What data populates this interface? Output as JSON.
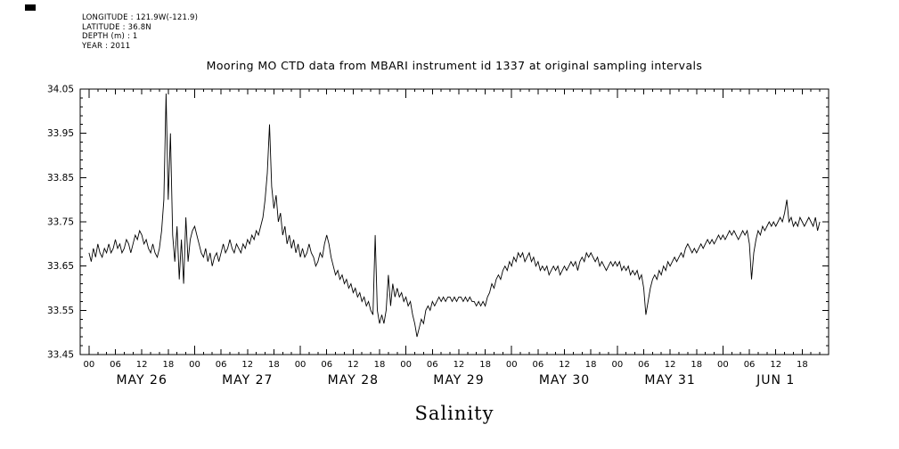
{
  "meta": {
    "longitude": "LONGITUDE : 121.9W(-121.9)",
    "latitude": "LATITUDE : 36.8N",
    "depth": "DEPTH (m) : 1",
    "year": "YEAR : 2011"
  },
  "title": "Mooring MO CTD data from MBARI instrument id 1337 at original sampling intervals",
  "chart_data": {
    "type": "line",
    "title": "Mooring MO CTD data from MBARI instrument id 1337 at original sampling intervals",
    "variable_label": "Salinity",
    "line_color": "#000000",
    "grid": false,
    "legend": "none",
    "ylim": [
      33.45,
      34.05
    ],
    "yticks": [
      33.45,
      33.55,
      33.65,
      33.75,
      33.85,
      33.95,
      34.05
    ],
    "xlim_hours": [
      -2,
      168
    ],
    "hour_step": 0.5,
    "days": [
      "MAY 26",
      "MAY 27",
      "MAY 28",
      "MAY 29",
      "MAY 30",
      "MAY 31",
      "JUN 1"
    ],
    "hour_tick_labels": [
      "00",
      "06",
      "12",
      "18"
    ],
    "series": [
      {
        "name": "Salinity",
        "y": [
          33.68,
          33.66,
          33.69,
          33.67,
          33.7,
          33.68,
          33.67,
          33.69,
          33.68,
          33.7,
          33.68,
          33.69,
          33.71,
          33.69,
          33.7,
          33.68,
          33.69,
          33.71,
          33.7,
          33.68,
          33.7,
          33.72,
          33.71,
          33.73,
          33.72,
          33.7,
          33.71,
          33.69,
          33.68,
          33.7,
          33.68,
          33.67,
          33.69,
          33.73,
          33.8,
          34.04,
          33.8,
          33.95,
          33.72,
          33.66,
          33.74,
          33.62,
          33.71,
          33.61,
          33.76,
          33.66,
          33.71,
          33.73,
          33.74,
          33.72,
          33.7,
          33.68,
          33.67,
          33.69,
          33.66,
          33.68,
          33.65,
          33.67,
          33.68,
          33.66,
          33.68,
          33.7,
          33.68,
          33.69,
          33.71,
          33.69,
          33.68,
          33.7,
          33.69,
          33.68,
          33.7,
          33.69,
          33.71,
          33.7,
          33.72,
          33.71,
          33.73,
          33.72,
          33.74,
          33.76,
          33.8,
          33.86,
          33.97,
          33.83,
          33.78,
          33.81,
          33.75,
          33.77,
          33.72,
          33.74,
          33.7,
          33.72,
          33.69,
          33.71,
          33.68,
          33.7,
          33.67,
          33.69,
          33.67,
          33.68,
          33.7,
          33.68,
          33.67,
          33.65,
          33.66,
          33.68,
          33.67,
          33.7,
          33.72,
          33.7,
          33.67,
          33.65,
          33.63,
          33.64,
          33.62,
          33.63,
          33.61,
          33.62,
          33.6,
          33.61,
          33.59,
          33.6,
          33.58,
          33.59,
          33.57,
          33.58,
          33.56,
          33.57,
          33.55,
          33.54,
          33.72,
          33.55,
          33.52,
          33.54,
          33.52,
          33.55,
          33.63,
          33.56,
          33.61,
          33.58,
          33.6,
          33.58,
          33.59,
          33.57,
          33.58,
          33.56,
          33.57,
          33.54,
          33.52,
          33.49,
          33.51,
          33.53,
          33.52,
          33.55,
          33.56,
          33.55,
          33.57,
          33.56,
          33.57,
          33.58,
          33.57,
          33.58,
          33.57,
          33.58,
          33.58,
          33.57,
          33.58,
          33.57,
          33.58,
          33.58,
          33.57,
          33.58,
          33.57,
          33.58,
          33.57,
          33.57,
          33.56,
          33.57,
          33.56,
          33.57,
          33.56,
          33.58,
          33.59,
          33.61,
          33.6,
          33.62,
          33.63,
          33.62,
          33.64,
          33.65,
          33.64,
          33.66,
          33.65,
          33.67,
          33.66,
          33.68,
          33.67,
          33.68,
          33.66,
          33.67,
          33.68,
          33.66,
          33.67,
          33.65,
          33.66,
          33.64,
          33.65,
          33.64,
          33.65,
          33.63,
          33.64,
          33.65,
          33.64,
          33.65,
          33.63,
          33.64,
          33.65,
          33.64,
          33.65,
          33.66,
          33.65,
          33.66,
          33.64,
          33.66,
          33.67,
          33.66,
          33.68,
          33.67,
          33.68,
          33.67,
          33.66,
          33.67,
          33.65,
          33.66,
          33.65,
          33.64,
          33.65,
          33.66,
          33.65,
          33.66,
          33.65,
          33.66,
          33.64,
          33.65,
          33.64,
          33.65,
          33.63,
          33.64,
          33.63,
          33.64,
          33.62,
          33.63,
          33.6,
          33.54,
          33.57,
          33.6,
          33.62,
          33.63,
          33.62,
          33.64,
          33.63,
          33.65,
          33.64,
          33.66,
          33.65,
          33.66,
          33.67,
          33.66,
          33.67,
          33.68,
          33.67,
          33.69,
          33.7,
          33.69,
          33.68,
          33.69,
          33.68,
          33.69,
          33.7,
          33.69,
          33.7,
          33.71,
          33.7,
          33.71,
          33.7,
          33.71,
          33.72,
          33.71,
          33.72,
          33.71,
          33.72,
          33.73,
          33.72,
          33.73,
          33.72,
          33.71,
          33.72,
          33.73,
          33.72,
          33.73,
          33.7,
          33.62,
          33.68,
          33.71,
          33.73,
          33.72,
          33.74,
          33.73,
          33.74,
          33.75,
          33.74,
          33.75,
          33.74,
          33.75,
          33.76,
          33.75,
          33.77,
          33.8,
          33.75,
          33.76,
          33.74,
          33.75,
          33.74,
          33.76,
          33.75,
          33.74,
          33.75,
          33.76,
          33.75,
          33.74,
          33.76,
          33.73,
          33.75
        ]
      }
    ]
  }
}
